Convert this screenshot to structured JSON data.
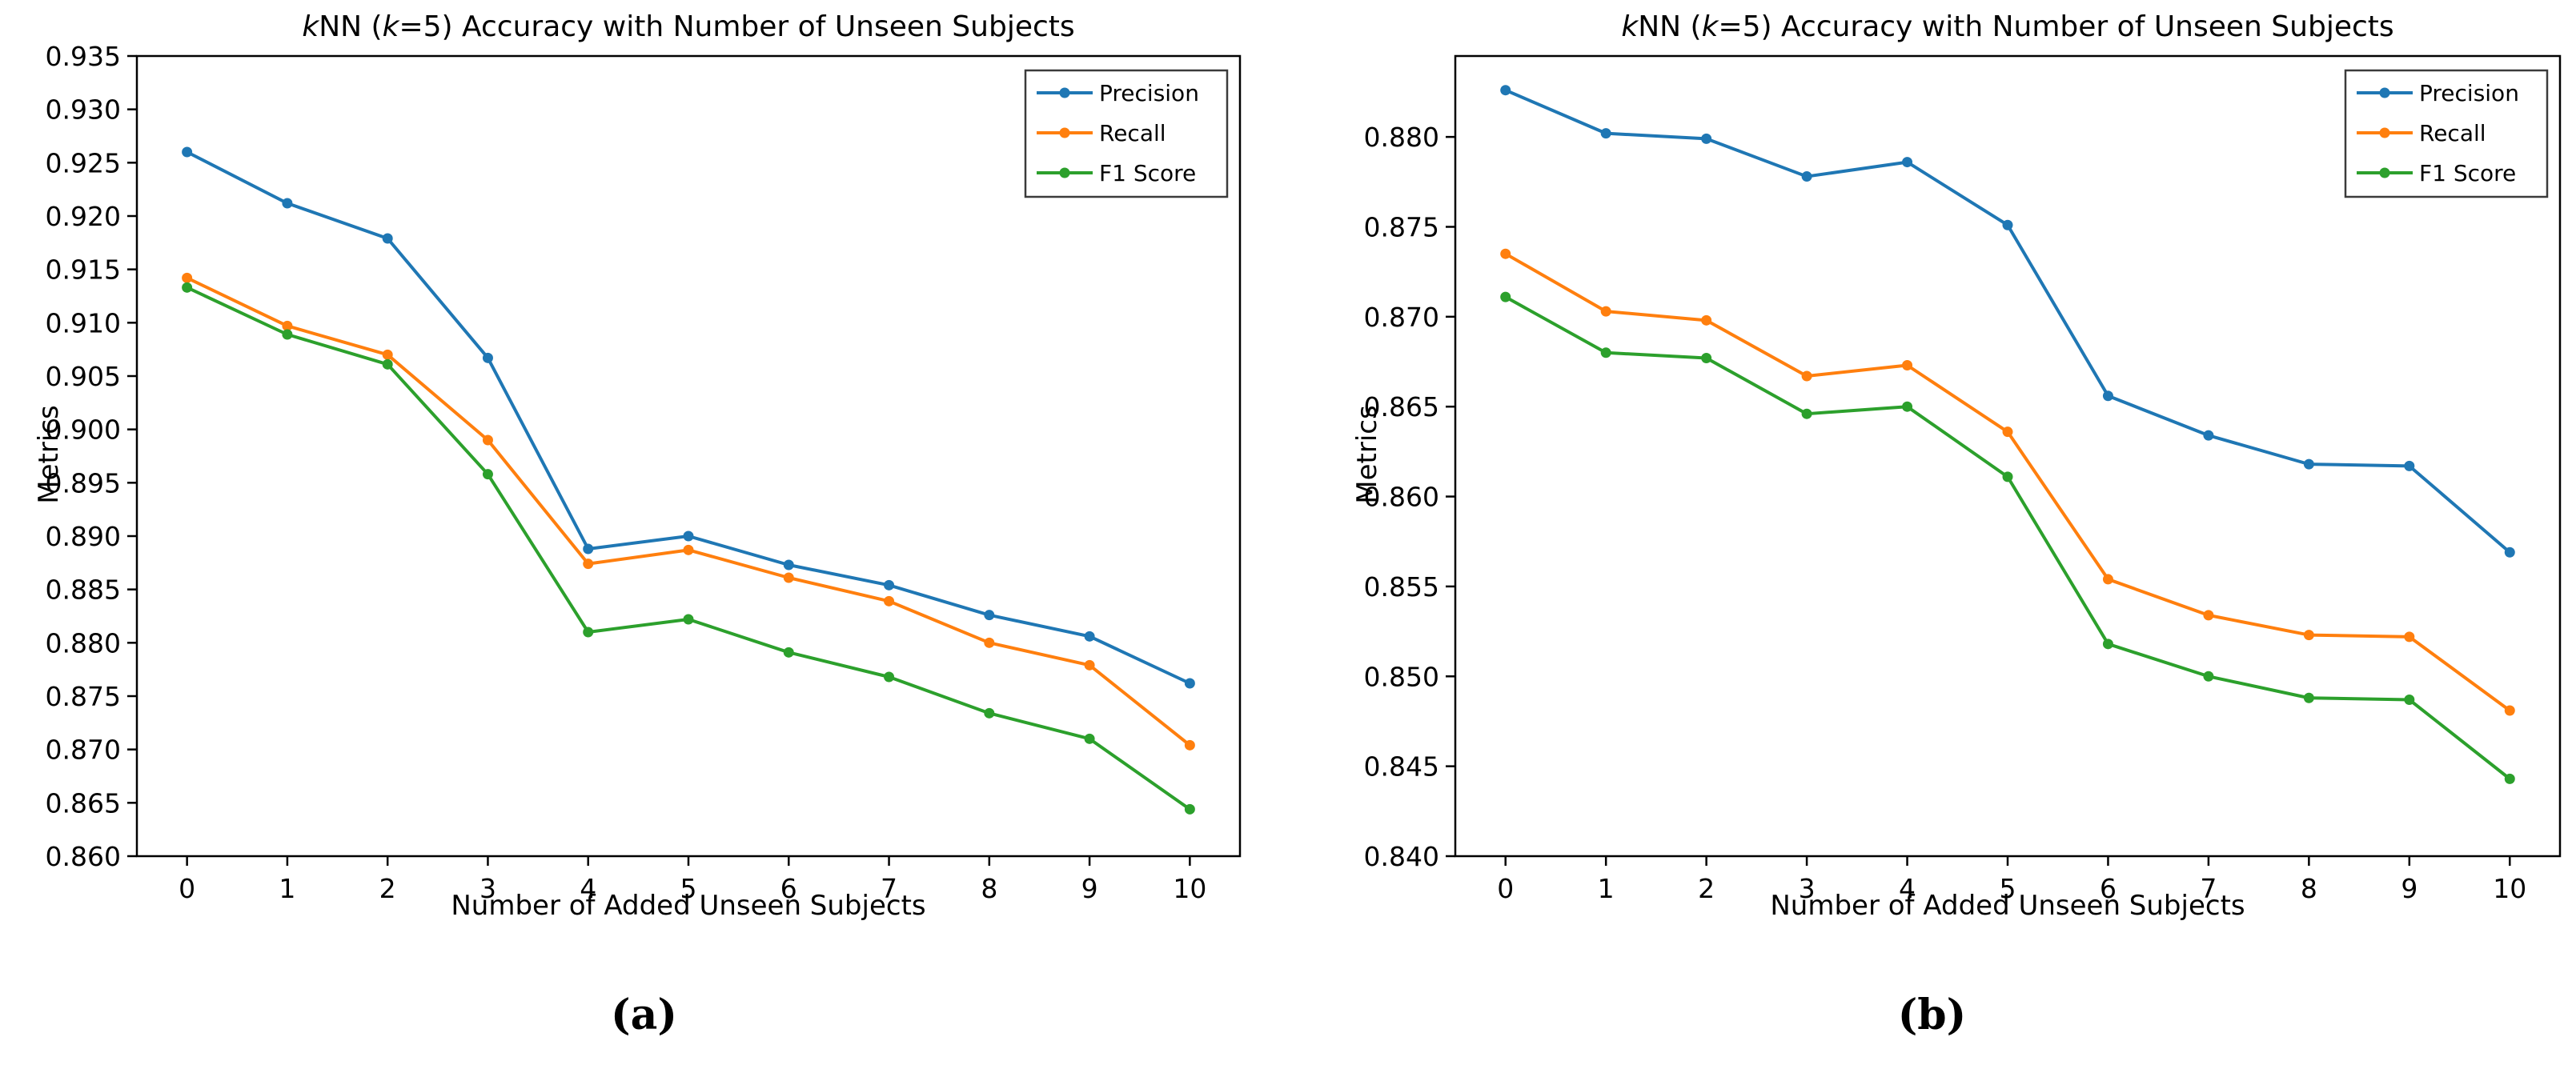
{
  "captions": [
    "(a)",
    "(b)"
  ],
  "colors": {
    "precision": "#1f77b4",
    "recall": "#ff7f0e",
    "f1": "#2ca02c",
    "spine": "#000000",
    "legend_border": "#3b3b3b",
    "background": "#ffffff"
  },
  "chart_data": [
    {
      "type": "line",
      "title": "kNN (k=5) Accuracy with Number of Unseen Subjects",
      "xlabel": "Number of Added Unseen Subjects",
      "ylabel": "Metrics",
      "x": [
        0,
        1,
        2,
        3,
        4,
        5,
        6,
        7,
        8,
        9,
        10
      ],
      "xlim": [
        -0.5,
        10.5
      ],
      "ylim": [
        0.86,
        0.935
      ],
      "yticks": [
        0.86,
        0.865,
        0.87,
        0.875,
        0.88,
        0.885,
        0.89,
        0.895,
        0.9,
        0.905,
        0.91,
        0.915,
        0.92,
        0.925,
        0.93,
        0.935
      ],
      "xticks": [
        0,
        1,
        2,
        3,
        4,
        5,
        6,
        7,
        8,
        9,
        10
      ],
      "grid": false,
      "legend_position": "upper right",
      "legend_items": [
        "Precision",
        "Recall",
        "F1 Score"
      ],
      "series": [
        {
          "name": "Precision",
          "color": "#1f77b4",
          "values": [
            0.926,
            0.9212,
            0.9179,
            0.9067,
            0.8888,
            0.89,
            0.8873,
            0.8854,
            0.8826,
            0.8806,
            0.8762
          ]
        },
        {
          "name": "Recall",
          "color": "#ff7f0e",
          "values": [
            0.9142,
            0.9097,
            0.907,
            0.899,
            0.8874,
            0.8887,
            0.8861,
            0.8839,
            0.88,
            0.8779,
            0.8704
          ]
        },
        {
          "name": "F1 Score",
          "color": "#2ca02c",
          "values": [
            0.9133,
            0.9089,
            0.9061,
            0.8958,
            0.881,
            0.8822,
            0.8791,
            0.8768,
            0.8734,
            0.871,
            0.8644
          ]
        }
      ]
    },
    {
      "type": "line",
      "title": "kNN (k=5) Accuracy with Number of Unseen Subjects",
      "xlabel": "Number of Added Unseen Subjects",
      "ylabel": "Metrics",
      "x": [
        0,
        1,
        2,
        3,
        4,
        5,
        6,
        7,
        8,
        9,
        10
      ],
      "xlim": [
        -0.5,
        10.5
      ],
      "ylim": [
        0.84,
        0.8845
      ],
      "yticks": [
        0.84,
        0.845,
        0.85,
        0.855,
        0.86,
        0.865,
        0.87,
        0.875,
        0.88
      ],
      "xticks": [
        0,
        1,
        2,
        3,
        4,
        5,
        6,
        7,
        8,
        9,
        10
      ],
      "grid": false,
      "legend_position": "upper right",
      "legend_items": [
        "Precision",
        "Recall",
        "F1 Score"
      ],
      "series": [
        {
          "name": "Precision",
          "color": "#1f77b4",
          "values": [
            0.8826,
            0.8802,
            0.8799,
            0.8778,
            0.8786,
            0.8751,
            0.8656,
            0.8634,
            0.8618,
            0.8617,
            0.8569
          ]
        },
        {
          "name": "Recall",
          "color": "#ff7f0e",
          "values": [
            0.8735,
            0.8703,
            0.8698,
            0.8667,
            0.8673,
            0.8636,
            0.8554,
            0.8534,
            0.8523,
            0.8522,
            0.8481
          ]
        },
        {
          "name": "F1 Score",
          "color": "#2ca02c",
          "values": [
            0.8711,
            0.868,
            0.8677,
            0.8646,
            0.865,
            0.8611,
            0.8518,
            0.85,
            0.8488,
            0.8487,
            0.8443
          ]
        }
      ]
    }
  ]
}
